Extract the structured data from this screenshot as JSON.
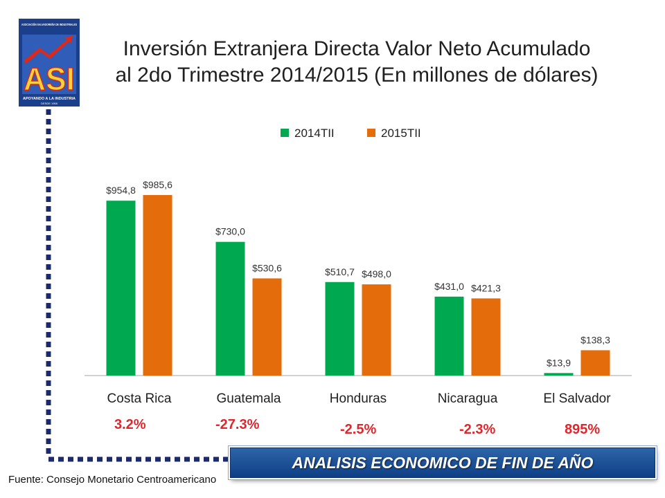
{
  "logo": {
    "top_text": "ASOCIACIÓN SALVADOREÑA DE INDUSTRIALES",
    "letters": "ASI",
    "bottom_text": "APOYANDO A LA INDUSTRIA",
    "since": "DESDE 1958",
    "colors": {
      "frame": "#1c3f8c",
      "letters": "#f7d23e",
      "letters_edge": "#d02a1f",
      "arrow": "#d82a1f"
    }
  },
  "title": {
    "line1": "Inversión Extranjera Directa Valor Neto Acumulado",
    "line2": "al 2do Trimestre 2014/2015 (En millones de dólares)"
  },
  "chart_data": {
    "type": "bar",
    "categories": [
      "Costa Rica",
      "Guatemala",
      "Honduras",
      "Nicaragua",
      "El Salvador"
    ],
    "series": [
      {
        "name": "2014TII",
        "color": "#00a84f",
        "values": [
          954.8,
          730.0,
          510.7,
          431.0,
          13.9
        ],
        "labels": [
          "$954,8",
          "$730,0",
          "$510,7",
          "$431,0",
          "$13,9"
        ]
      },
      {
        "name": "2015TII",
        "color": "#e46c0a",
        "values": [
          985.6,
          530.6,
          498.0,
          421.3,
          138.3
        ],
        "labels": [
          "$985,6",
          "$530,6",
          "$498,0",
          "$421,3",
          "$138,3"
        ]
      }
    ],
    "changes": [
      "3.2%",
      "-27.3%",
      "-2.5%",
      "-2.3%",
      "895%"
    ],
    "change_color": "#e0252b",
    "legend_position": "top",
    "ylim": [
      0,
      1000
    ],
    "grid": false
  },
  "source": "Fuente: Consejo Monetario Centroamericano",
  "banner": {
    "label": "ANALISIS ECONOMICO DE FIN DE AÑO",
    "color": "#0e3f86"
  },
  "frame_color": "#1b2a6b"
}
